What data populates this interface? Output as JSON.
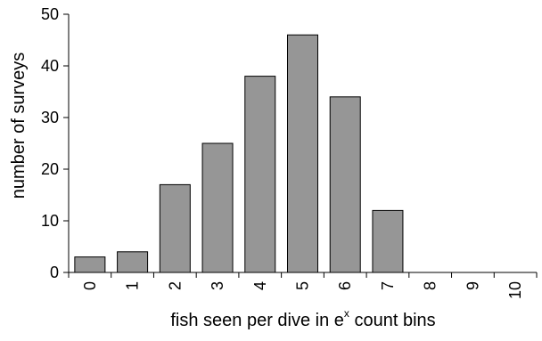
{
  "chart_data": {
    "type": "bar",
    "categories": [
      "0",
      "1",
      "2",
      "3",
      "4",
      "5",
      "6",
      "7",
      "8",
      "9",
      "10"
    ],
    "values": [
      3,
      4,
      17,
      25,
      38,
      46,
      34,
      12,
      0,
      0,
      0
    ],
    "title": "",
    "xlabel": "fish seen per dive in e",
    "xlabel_superscript": "x",
    "xlabel_suffix": " count bins",
    "ylabel": "number of surveys",
    "ylim": [
      0,
      50
    ],
    "yticks": [
      "0",
      "10",
      "20",
      "30",
      "40",
      "50"
    ],
    "grid": false,
    "legend": "none",
    "bar_color": "#969696",
    "bar_edge_color": "#000000"
  }
}
